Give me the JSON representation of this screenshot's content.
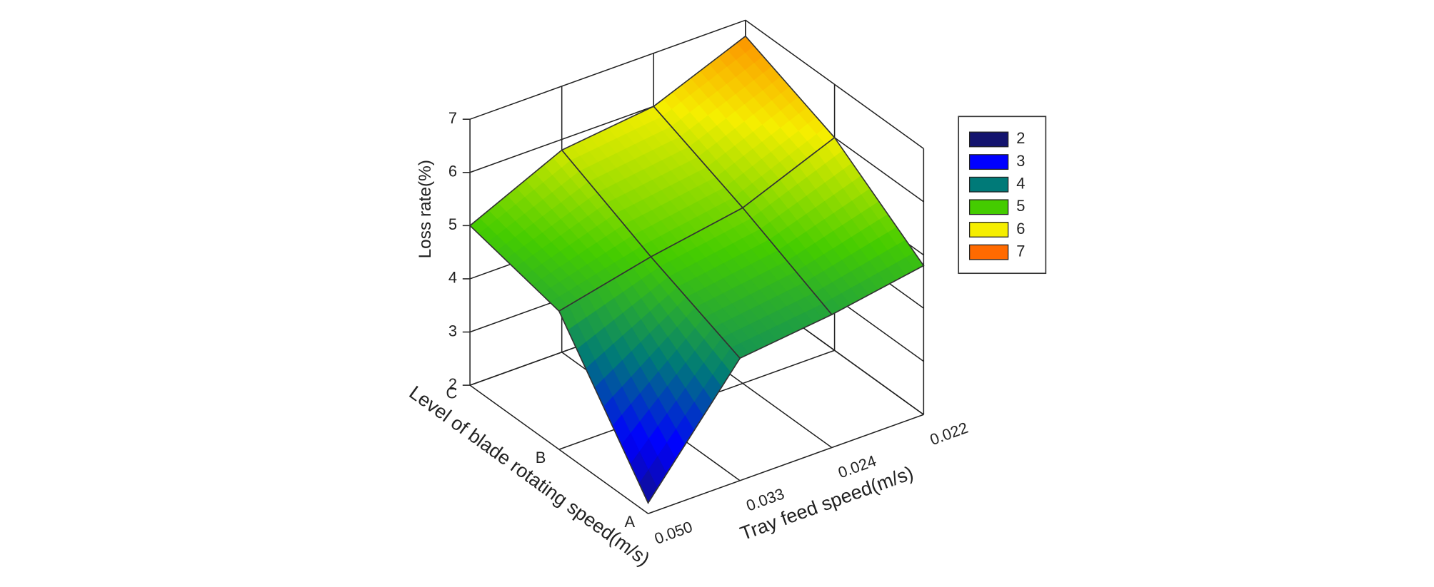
{
  "chart_data": {
    "type": "surface3d",
    "x_label": "Tray feed speed(m/s)",
    "y_label": "Level of blade rotating speed(m/s)",
    "z_label": "Loss rate(%)",
    "x_categories": [
      "0.050",
      "0.033",
      "0.024",
      "0.022"
    ],
    "y_categories": [
      "A",
      "B",
      "C"
    ],
    "z": [
      [
        2.2,
        4.3,
        4.5,
        4.8
      ],
      [
        4.6,
        5.0,
        5.3,
        6.0
      ],
      [
        5.0,
        5.8,
        6.0,
        6.7
      ]
    ],
    "zlim": [
      2,
      7
    ],
    "zticks": [
      2,
      3,
      4,
      5,
      6,
      7
    ],
    "grid": true,
    "colorbar": {
      "levels": [
        2,
        3,
        4,
        5,
        6,
        7
      ],
      "colors": [
        "#14146e",
        "#0000ff",
        "#007a78",
        "#44cc00",
        "#f5ee00",
        "#ff6a00"
      ]
    }
  }
}
